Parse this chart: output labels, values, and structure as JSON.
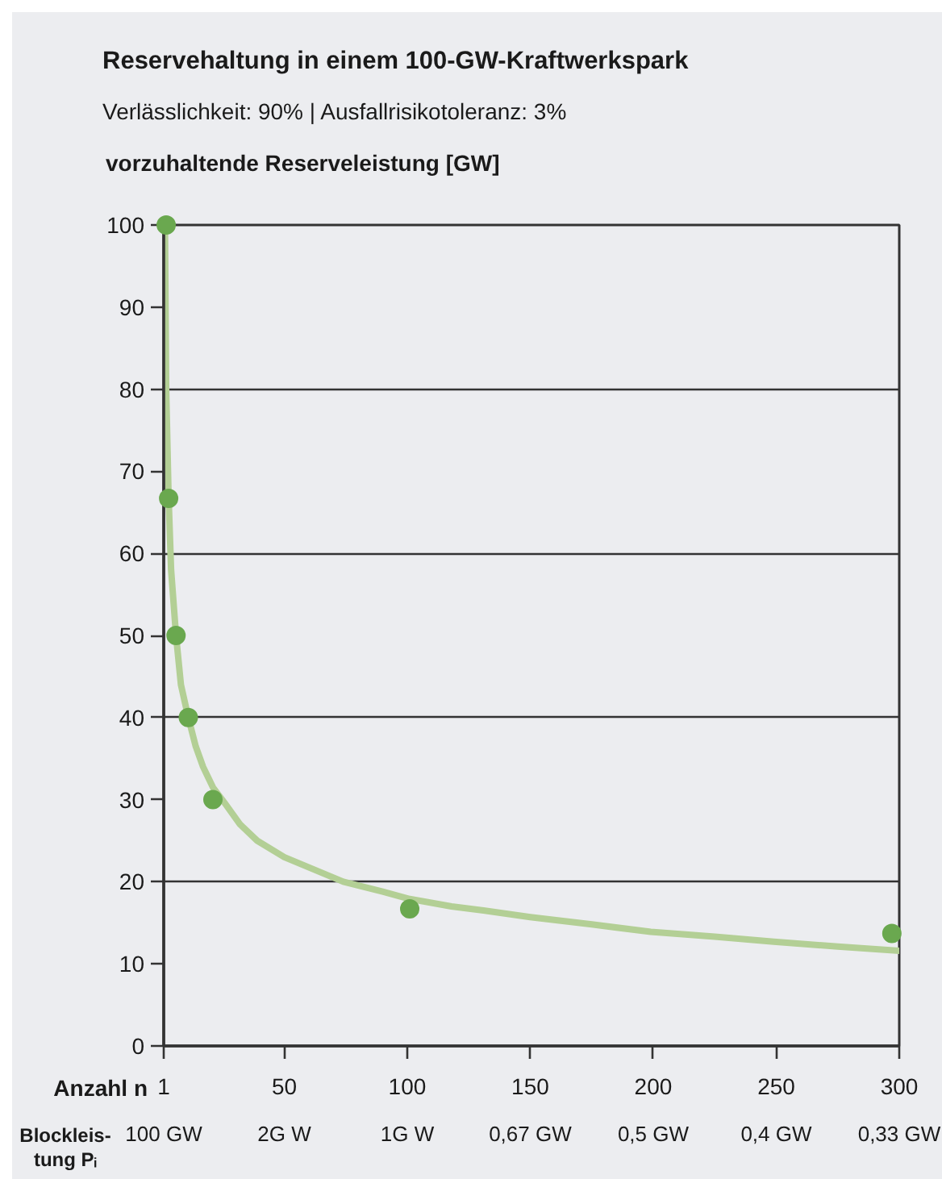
{
  "chart_data": {
    "type": "scatter",
    "title": "Reservehaltung in einem 100-GW-Kraftwerkspark",
    "subtitle": "Verlässlichkeit: 90% | Ausfallrisikotoleranz: 3%",
    "ylabel": "vorzuhaltende Reserveleistung [GW]",
    "xlabel": "Anzahl n",
    "annotations": [
      "Blockleis-\ntung Pᵢ",
      "100 GW",
      "2G W",
      "1G W",
      "0,67 GW",
      "0,5 GW",
      "0,4 GW",
      "0,33 GW"
    ],
    "xlim": [
      1,
      300
    ],
    "xticks": [
      1,
      50,
      100,
      150,
      200,
      250,
      300
    ],
    "ylim": [
      0,
      100
    ],
    "yticks": [
      0,
      10,
      20,
      30,
      40,
      50,
      60,
      70,
      80,
      90,
      100
    ],
    "grid": "y",
    "series": [
      {
        "type": "line",
        "color": "#b3cf95",
        "marker": "none",
        "x": [
          1.5,
          2,
          3,
          4,
          6,
          8,
          11,
          14,
          17,
          21,
          26,
          32,
          39,
          50,
          62,
          74,
          90,
          101,
          118,
          131,
          150,
          175,
          199,
          225,
          249,
          275,
          300
        ],
        "values": [
          100,
          80,
          66.7,
          58,
          50,
          44,
          40,
          36.5,
          34,
          31.5,
          29.5,
          27,
          25,
          23,
          21.5,
          20,
          18.8,
          17.9,
          17,
          16.5,
          15.7,
          14.8,
          13.9,
          13.3,
          12.7,
          12.1,
          11.6
        ]
      },
      {
        "color": "#6aa84f",
        "marker": "circle",
        "x": [
          2,
          3,
          6,
          11,
          21,
          101,
          297
        ],
        "values": [
          100,
          66.7,
          50,
          40,
          30,
          16.7,
          13.7
        ]
      }
    ]
  }
}
